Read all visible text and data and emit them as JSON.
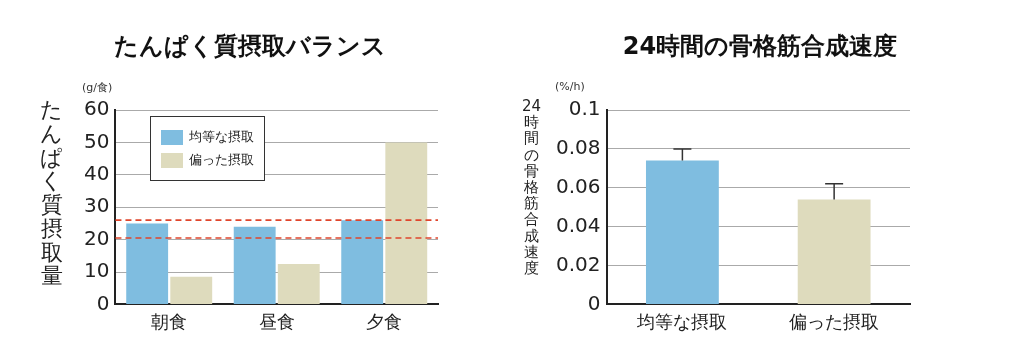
{
  "chart_data": [
    {
      "type": "bar",
      "title": "たんぱく質摂取バランス",
      "ylabel": "たんぱく質摂取量",
      "annotations": [
        "(g/食)"
      ],
      "categories": [
        "朝食",
        "昼食",
        "夕食"
      ],
      "series": [
        {
          "name": "均等な摂取",
          "color": "#7fbde0",
          "values": [
            25,
            24,
            26
          ]
        },
        {
          "name": "偏った摂取",
          "color": "#dedbbd",
          "values": [
            8.5,
            12.5,
            50
          ]
        }
      ],
      "ylim": [
        0,
        60
      ],
      "yticks": [
        0,
        10,
        20,
        30,
        40,
        50,
        60
      ],
      "grid": "y",
      "legend": "top left",
      "ref_lines": [
        {
          "axis": "y",
          "value": 26,
          "label": null,
          "color": "#e0452c",
          "line_style": "dashed"
        },
        {
          "axis": "y",
          "value": 20.5,
          "label": null,
          "color": "#e0452c",
          "line_style": "dashed"
        }
      ]
    },
    {
      "type": "bar",
      "title": "24時間の骨格筋合成速度",
      "ylabel": "24時間の骨格筋合成速度",
      "annotations": [
        "(%/h)"
      ],
      "categories": [
        "均等な摂取",
        "偏った摂取"
      ],
      "values": [
        0.074,
        0.054
      ],
      "colors": [
        "#7fbde0",
        "#dedbbd"
      ],
      "errors": [
        [
          0.074,
          0.08
        ],
        [
          0.054,
          0.062
        ]
      ],
      "ylim": [
        0,
        0.1
      ],
      "yticks": [
        0,
        0.02,
        0.04,
        0.06,
        0.08,
        0.1
      ],
      "grid": "y"
    }
  ]
}
